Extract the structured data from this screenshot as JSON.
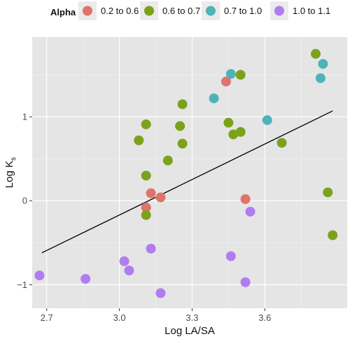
{
  "chart_data": {
    "type": "scatter",
    "xlabel": "Log LA/SA",
    "ylabel_main": "Log K",
    "ylabel_sub": "s",
    "xlim": [
      2.64,
      3.94
    ],
    "ylim": [
      -1.28,
      1.95
    ],
    "x_ticks": [
      2.7,
      3.0,
      3.3,
      3.6
    ],
    "x_tick_labels": [
      "2.7",
      "3.0",
      "3.3",
      "3.6"
    ],
    "y_ticks": [
      -1,
      0,
      1
    ],
    "y_tick_labels": [
      "−1",
      "0",
      "1"
    ],
    "grid": true,
    "background": "#e5e5e5",
    "legend": {
      "title": "Alpha",
      "position": "top",
      "entries": [
        {
          "label": "0.2 to 0.6",
          "color": "#e0736c"
        },
        {
          "label": "0.6 to 0.7",
          "color": "#7ca21c"
        },
        {
          "label": "0.7 to 1.0",
          "color": "#4eb3b8"
        },
        {
          "label": "1.0 to 1.1",
          "color": "#b27cf0"
        }
      ]
    },
    "series": [
      {
        "name": "0.2 to 0.6",
        "color": "#e0736c",
        "points": [
          [
            3.44,
            1.42
          ],
          [
            3.13,
            0.09
          ],
          [
            3.17,
            0.04
          ],
          [
            3.11,
            -0.08
          ],
          [
            3.52,
            0.02
          ]
        ]
      },
      {
        "name": "0.6 to 0.7",
        "color": "#7ca21c",
        "points": [
          [
            3.81,
            1.75
          ],
          [
            3.5,
            1.5
          ],
          [
            3.26,
            1.15
          ],
          [
            3.11,
            0.91
          ],
          [
            3.25,
            0.89
          ],
          [
            3.45,
            0.93
          ],
          [
            3.08,
            0.72
          ],
          [
            3.26,
            0.68
          ],
          [
            3.47,
            0.79
          ],
          [
            3.5,
            0.82
          ],
          [
            3.67,
            0.69
          ],
          [
            3.2,
            0.48
          ],
          [
            3.11,
            0.3
          ],
          [
            3.11,
            -0.17
          ],
          [
            3.86,
            0.1
          ],
          [
            3.88,
            -0.41
          ]
        ]
      },
      {
        "name": "0.7 to 1.0",
        "color": "#4eb3b8",
        "points": [
          [
            3.46,
            1.51
          ],
          [
            3.39,
            1.22
          ],
          [
            3.61,
            0.96
          ],
          [
            3.84,
            1.63
          ],
          [
            3.83,
            1.46
          ]
        ]
      },
      {
        "name": "1.0 to 1.1",
        "color": "#b27cf0",
        "points": [
          [
            2.67,
            -0.89
          ],
          [
            2.86,
            -0.93
          ],
          [
            3.02,
            -0.72
          ],
          [
            3.04,
            -0.83
          ],
          [
            3.13,
            -0.57
          ],
          [
            3.17,
            -1.1
          ],
          [
            3.46,
            -0.66
          ],
          [
            3.52,
            -0.97
          ],
          [
            3.54,
            -0.13
          ]
        ]
      }
    ],
    "trend_line": {
      "x": [
        2.68,
        3.88
      ],
      "y": [
        -0.62,
        1.07
      ]
    }
  }
}
